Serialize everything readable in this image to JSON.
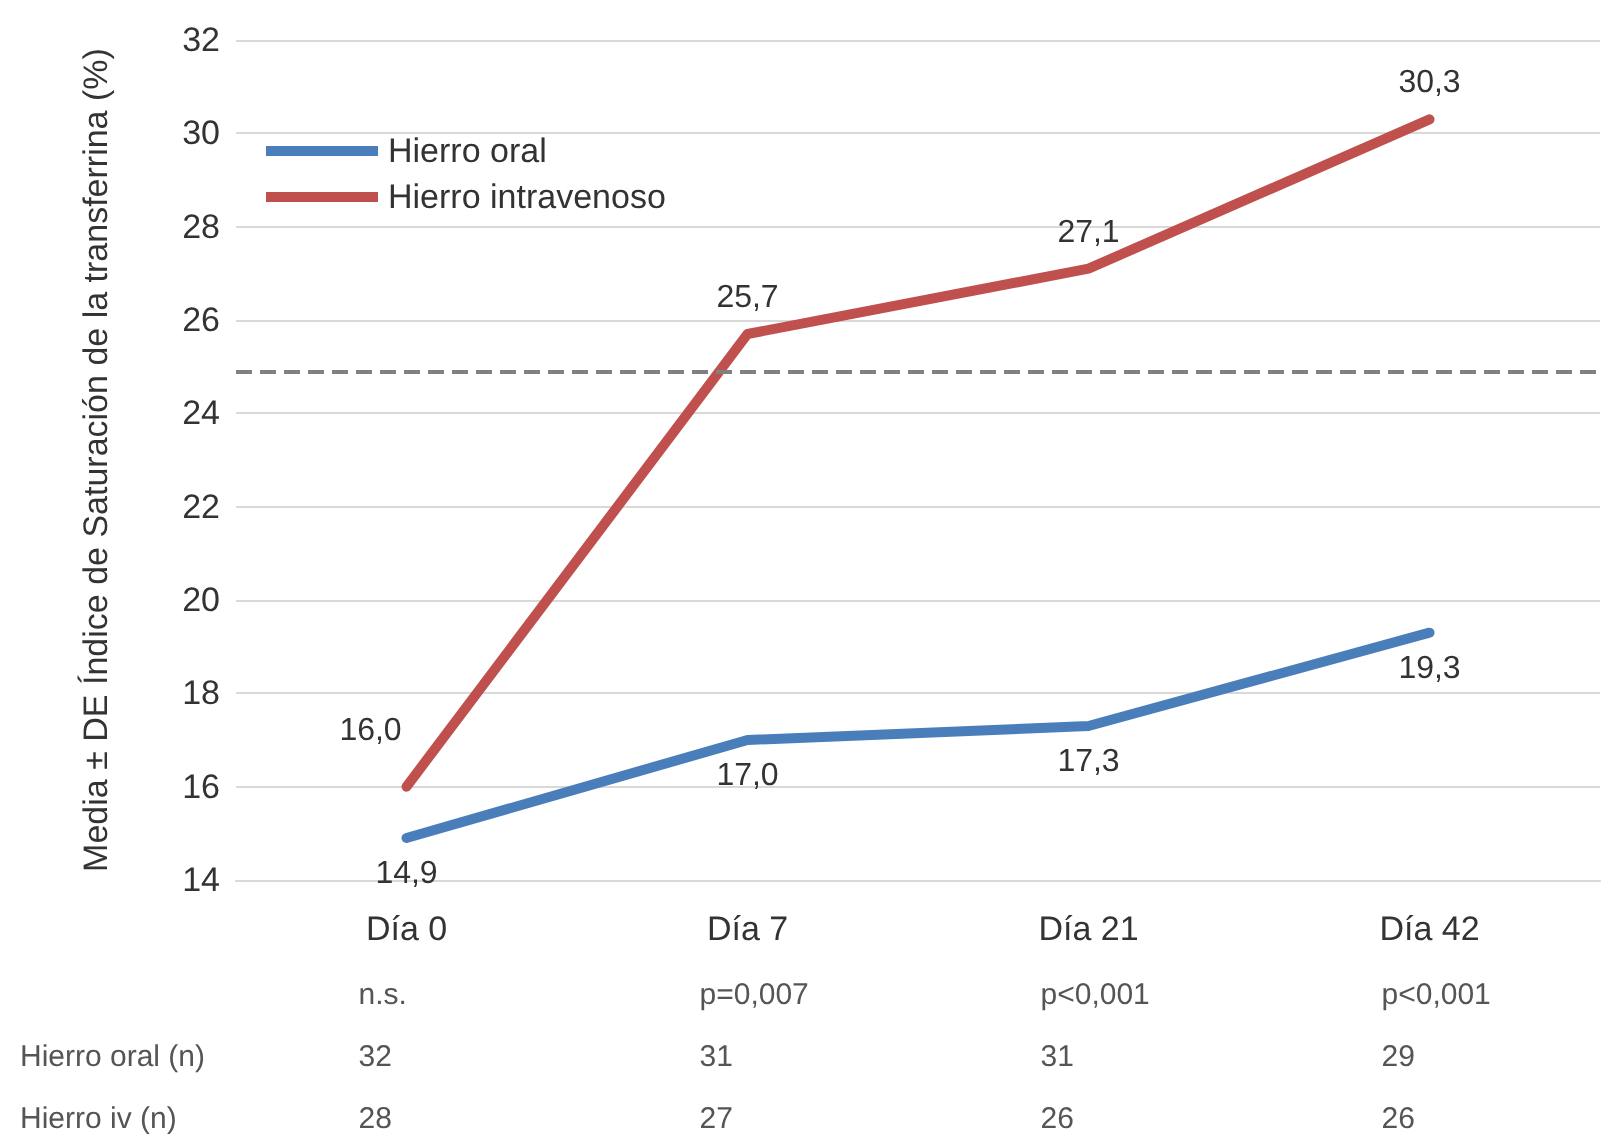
{
  "chart_data": {
    "type": "line",
    "ylabel": "Media ± DE Índice de Saturación de la transferrina (%)",
    "categories": [
      "Día 0",
      "Día 7",
      "Día 21",
      "Día 42"
    ],
    "series": [
      {
        "name": "Hierro oral",
        "color": "#4a7ebb",
        "values": [
          14.9,
          17.0,
          17.3,
          19.3
        ],
        "value_labels": [
          "14,9",
          "17,0",
          "17,3",
          "19,3"
        ]
      },
      {
        "name": "Hierro intravenoso",
        "color": "#c0504d",
        "values": [
          16.0,
          25.7,
          27.1,
          30.3
        ],
        "value_labels": [
          "16,0",
          "25,7",
          "27,1",
          "30,3"
        ]
      }
    ],
    "ylim": [
      14,
      32
    ],
    "yticks": [
      14,
      16,
      18,
      20,
      22,
      24,
      26,
      28,
      30,
      32
    ],
    "grid": "y",
    "legend": "top left",
    "marker": "none",
    "line_style": "solid",
    "ref_lines": [
      {
        "axis": "y",
        "value": 24.9,
        "color": "#808080",
        "line_style": "dashed"
      }
    ],
    "annotations": [
      "n.s.",
      "p=0,007",
      "p<0,001",
      "p<0,001",
      "Hierro oral (n)",
      "32",
      "31",
      "31",
      "29",
      "Hierro iv (n)",
      "28",
      "27",
      "26",
      "26"
    ]
  }
}
